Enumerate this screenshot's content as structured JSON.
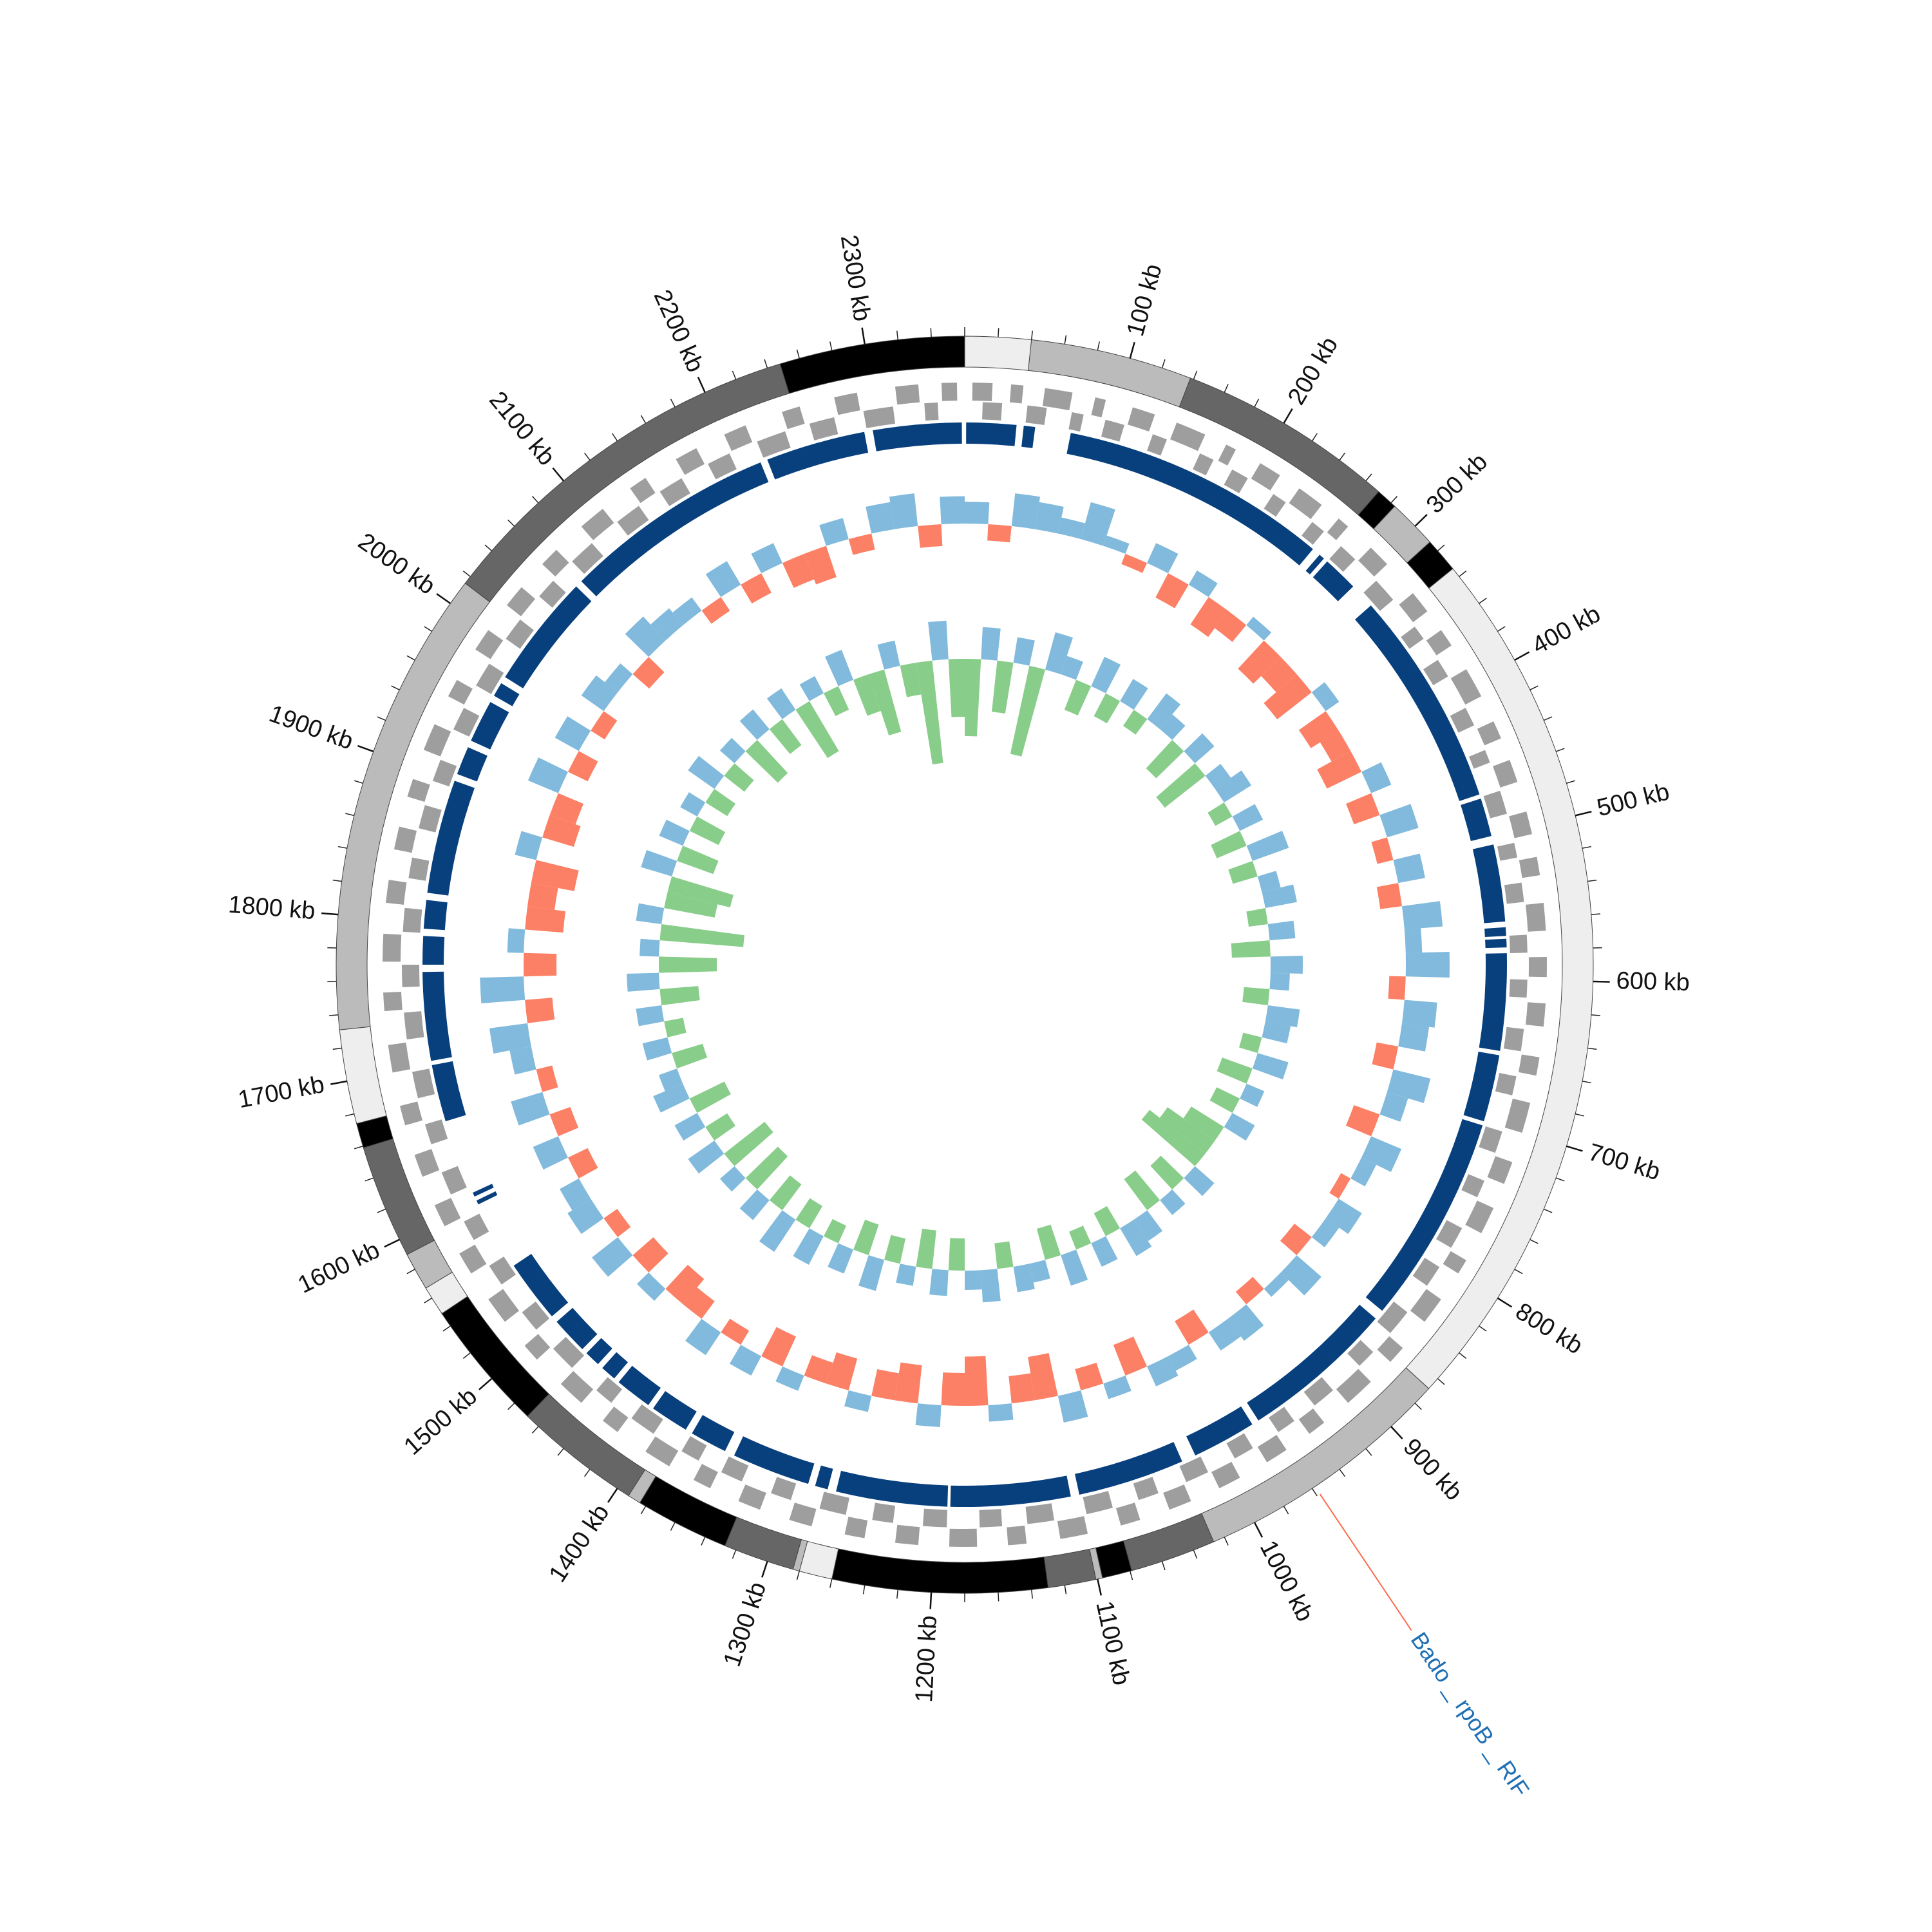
{
  "chart_data": {
    "type": "circos",
    "xlim": [
      0,
      2360
    ],
    "xticks": [
      {
        "value": 100,
        "label": "100 kb"
      },
      {
        "value": 200,
        "label": "200 kb"
      },
      {
        "value": 300,
        "label": "300 kb"
      },
      {
        "value": 400,
        "label": "400 kb"
      },
      {
        "value": 500,
        "label": "500 kb"
      },
      {
        "value": 600,
        "label": "600 kb"
      },
      {
        "value": 700,
        "label": "700 kb"
      },
      {
        "value": 800,
        "label": "800 kb"
      },
      {
        "value": 900,
        "label": "900 kb"
      },
      {
        "value": 1000,
        "label": "1000 kb"
      },
      {
        "value": 1100,
        "label": "1100 kb"
      },
      {
        "value": 1200,
        "label": "1200 kb"
      },
      {
        "value": 1300,
        "label": "1300 kb"
      },
      {
        "value": 1400,
        "label": "1400 kb"
      },
      {
        "value": 1500,
        "label": "1500 kb"
      },
      {
        "value": 1600,
        "label": "1600 kb"
      },
      {
        "value": 1700,
        "label": "1700 kb"
      },
      {
        "value": 1800,
        "label": "1800 kb"
      },
      {
        "value": 1900,
        "label": "1900 kb"
      },
      {
        "value": 2000,
        "label": "2000 kb"
      },
      {
        "value": 2100,
        "label": "2100 kb"
      },
      {
        "value": 2200,
        "label": "2200 kb"
      },
      {
        "value": 2300,
        "label": "2300 kb"
      }
    ],
    "minor_xticks": [
      0,
      20,
      40,
      60,
      80,
      100,
      120,
      140,
      160,
      180,
      200,
      220,
      240,
      260,
      280,
      300,
      320,
      340,
      360,
      380,
      400,
      420,
      440,
      460,
      480,
      500,
      520,
      540,
      560,
      580,
      600,
      620,
      640,
      660,
      680,
      700,
      720,
      740,
      760,
      780,
      800,
      820,
      840,
      860,
      880,
      900,
      920,
      940,
      960,
      980,
      1000,
      1020,
      1040,
      1060,
      1080,
      1100,
      1120,
      1140,
      1160,
      1180,
      1200,
      1220,
      1240,
      1260,
      1280,
      1300,
      1320,
      1340,
      1360,
      1380,
      1400,
      1420,
      1440,
      1460,
      1480,
      1500,
      1520,
      1540,
      1560,
      1580,
      1600,
      1620,
      1640,
      1660,
      1680,
      1700,
      1720,
      1740,
      1760,
      1780,
      1800,
      1820,
      1840,
      1860,
      1880,
      1900,
      1920,
      1940,
      1960,
      1980,
      2000,
      2020,
      2040,
      2060,
      2080,
      2100,
      2120,
      2140,
      2160,
      2180,
      2200,
      2220,
      2240,
      2260,
      2280,
      2300,
      2320,
      2340
    ],
    "contigs": [
      {
        "start": 0,
        "end": 40,
        "color": "#eeeeee"
      },
      {
        "start": 40,
        "end": 138,
        "color": "#bbbbbb"
      },
      {
        "start": 138,
        "end": 270,
        "color": "#666666"
      },
      {
        "start": 270,
        "end": 283,
        "color": "#000000"
      },
      {
        "start": 283,
        "end": 313,
        "color": "#bbbbbb"
      },
      {
        "start": 313,
        "end": 334,
        "color": "#000000"
      },
      {
        "start": 334,
        "end": 868,
        "color": "#eeeeee"
      },
      {
        "start": 868,
        "end": 1027,
        "color": "#bbbbbb"
      },
      {
        "start": 1027,
        "end": 1079,
        "color": "#666666"
      },
      {
        "start": 1079,
        "end": 1097,
        "color": "#000000"
      },
      {
        "start": 1097,
        "end": 1101,
        "color": "#bbbbbb"
      },
      {
        "start": 1101,
        "end": 1130,
        "color": "#666666"
      },
      {
        "start": 1130,
        "end": 1260,
        "color": "#000000"
      },
      {
        "start": 1260,
        "end": 1280,
        "color": "#eeeeee"
      },
      {
        "start": 1280,
        "end": 1284,
        "color": "#bbbbbb"
      },
      {
        "start": 1284,
        "end": 1327,
        "color": "#666666"
      },
      {
        "start": 1327,
        "end": 1384,
        "color": "#000000"
      },
      {
        "start": 1384,
        "end": 1392,
        "color": "#bbbbbb"
      },
      {
        "start": 1392,
        "end": 1469,
        "color": "#666666"
      },
      {
        "start": 1469,
        "end": 1549,
        "color": "#000000"
      },
      {
        "start": 1549,
        "end": 1567,
        "color": "#eeeeee"
      },
      {
        "start": 1567,
        "end": 1590,
        "color": "#bbbbbb"
      },
      {
        "start": 1590,
        "end": 1659,
        "color": "#666666"
      },
      {
        "start": 1659,
        "end": 1674,
        "color": "#000000"
      },
      {
        "start": 1674,
        "end": 1731,
        "color": "#eeeeee"
      },
      {
        "start": 1731,
        "end": 2015,
        "color": "#bbbbbb"
      },
      {
        "start": 2015,
        "end": 2248,
        "color": "#666666"
      },
      {
        "start": 2248,
        "end": 2360,
        "color": "#000000"
      }
    ],
    "genes": {
      "color": "#9e9e9e",
      "forward": [
        [
          5,
          18
        ],
        [
          30,
          38
        ],
        [
          52,
          70
        ],
        [
          85,
          92
        ],
        [
          110,
          125
        ],
        [
          140,
          160
        ],
        [
          175,
          182
        ],
        [
          200,
          215
        ],
        [
          230,
          248
        ],
        [
          262,
          270
        ],
        [
          290,
          305
        ],
        [
          330,
          345
        ],
        [
          360,
          372
        ],
        [
          390,
          410
        ],
        [
          428,
          440
        ],
        [
          455,
          470
        ],
        [
          490,
          505
        ],
        [
          520,
          532
        ],
        [
          550,
          568
        ],
        [
          585,
          598
        ],
        [
          615,
          630
        ],
        [
          650,
          662
        ],
        [
          680,
          700
        ],
        [
          720,
          735
        ],
        [
          752,
          770
        ],
        [
          790,
          800
        ],
        [
          820,
          838
        ],
        [
          860,
          872
        ],
        [
          890,
          910
        ],
        [
          930,
          942
        ],
        [
          960,
          975
        ],
        [
          995,
          1010
        ],
        [
          1030,
          1045
        ],
        [
          1065,
          1078
        ],
        [
          1100,
          1118
        ],
        [
          1140,
          1152
        ],
        [
          1172,
          1190
        ],
        [
          1210,
          1225
        ],
        [
          1245,
          1258
        ],
        [
          1280,
          1295
        ],
        [
          1315,
          1330
        ],
        [
          1350,
          1362
        ],
        [
          1380,
          1398
        ],
        [
          1420,
          1432
        ],
        [
          1450,
          1468
        ],
        [
          1490,
          1502
        ],
        [
          1522,
          1540
        ],
        [
          1560,
          1575
        ],
        [
          1595,
          1610
        ],
        [
          1630,
          1645
        ],
        [
          1665,
          1678
        ],
        [
          1700,
          1718
        ],
        [
          1740,
          1752
        ],
        [
          1772,
          1790
        ],
        [
          1810,
          1825
        ],
        [
          1845,
          1860
        ],
        [
          1880,
          1892
        ],
        [
          1912,
          1930
        ],
        [
          1950,
          1962
        ],
        [
          1985,
          2000
        ],
        [
          2020,
          2035
        ],
        [
          2055,
          2068
        ],
        [
          2090,
          2108
        ],
        [
          2130,
          2142
        ],
        [
          2165,
          2180
        ],
        [
          2200,
          2215
        ],
        [
          2240,
          2252
        ],
        [
          2275,
          2290
        ],
        [
          2315,
          2330
        ],
        [
          2345,
          2355
        ]
      ],
      "reverse": [
        [
          12,
          25
        ],
        [
          42,
          55
        ],
        [
          72,
          80
        ],
        [
          95,
          108
        ],
        [
          128,
          138
        ],
        [
          162,
          172
        ],
        [
          186,
          198
        ],
        [
          218,
          228
        ],
        [
          250,
          260
        ],
        [
          275,
          288
        ],
        [
          308,
          325
        ],
        [
          348,
          358
        ],
        [
          375,
          388
        ],
        [
          412,
          425
        ],
        [
          443,
          452
        ],
        [
          472,
          488
        ],
        [
          508,
          518
        ],
        [
          535,
          548
        ],
        [
          570,
          582
        ],
        [
          600,
          612
        ],
        [
          633,
          648
        ],
        [
          665,
          678
        ],
        [
          703,
          718
        ],
        [
          738,
          750
        ],
        [
          773,
          788
        ],
        [
          803,
          818
        ],
        [
          840,
          858
        ],
        [
          875,
          888
        ],
        [
          912,
          928
        ],
        [
          945,
          958
        ],
        [
          978,
          992
        ],
        [
          1012,
          1028
        ],
        [
          1048,
          1062
        ],
        [
          1080,
          1098
        ],
        [
          1120,
          1138
        ],
        [
          1155,
          1170
        ],
        [
          1192,
          1208
        ],
        [
          1228,
          1242
        ],
        [
          1260,
          1278
        ],
        [
          1298,
          1312
        ],
        [
          1333,
          1348
        ],
        [
          1365,
          1378
        ],
        [
          1400,
          1418
        ],
        [
          1435,
          1448
        ],
        [
          1470,
          1488
        ],
        [
          1505,
          1520
        ],
        [
          1543,
          1558
        ],
        [
          1578,
          1592
        ],
        [
          1612,
          1628
        ],
        [
          1648,
          1662
        ],
        [
          1680,
          1698
        ],
        [
          1720,
          1738
        ],
        [
          1755,
          1770
        ],
        [
          1792,
          1808
        ],
        [
          1828,
          1842
        ],
        [
          1862,
          1878
        ],
        [
          1895,
          1910
        ],
        [
          1932,
          1948
        ],
        [
          1965,
          1982
        ],
        [
          2002,
          2018
        ],
        [
          2038,
          2052
        ],
        [
          2070,
          2088
        ],
        [
          2110,
          2128
        ],
        [
          2145,
          2162
        ],
        [
          2182,
          2198
        ],
        [
          2218,
          2238
        ],
        [
          2255,
          2272
        ],
        [
          2292,
          2312
        ],
        [
          2333,
          2342
        ]
      ]
    },
    "blocks": {
      "color": "#08407e",
      "values": [
        [
          1,
          36
        ],
        [
          41,
          49
        ],
        [
          74,
          262
        ],
        [
          268,
          272
        ],
        [
          275,
          300
        ],
        [
          318,
          470
        ],
        [
          473,
          500
        ],
        [
          506,
          560
        ],
        [
          564,
          570
        ],
        [
          572,
          578
        ],
        [
          582,
          650
        ],
        [
          653,
          700
        ],
        [
          703,
          850
        ],
        [
          857,
          965
        ],
        [
          970,
          1015
        ],
        [
          1025,
          1100
        ],
        [
          1106,
          1190
        ],
        [
          1192,
          1270
        ],
        [
          1276,
          1285
        ],
        [
          1290,
          1345
        ],
        [
          1352,
          1378
        ],
        [
          1383,
          1410
        ],
        [
          1414,
          1440
        ],
        [
          1444,
          1455
        ],
        [
          1459,
          1470
        ],
        [
          1474,
          1500
        ],
        [
          1505,
          1549
        ],
        [
          1598,
          1601
        ],
        [
          1604,
          1607
        ],
        [
          1660,
          1700
        ],
        [
          1703,
          1765
        ],
        [
          1770,
          1790
        ],
        [
          1795,
          1815
        ],
        [
          1820,
          1900
        ],
        [
          1905,
          1925
        ],
        [
          1930,
          1960
        ],
        [
          1965,
          1975
        ],
        [
          1980,
          2060
        ],
        [
          2065,
          2215
        ],
        [
          2220,
          2290
        ],
        [
          2296,
          2358
        ]
      ]
    },
    "x": [
      0,
      20,
      40,
      60,
      80,
      100,
      120,
      140,
      160,
      180,
      200,
      220,
      240,
      260,
      280,
      300,
      320,
      340,
      360,
      380,
      400,
      420,
      440,
      460,
      480,
      500,
      520,
      540,
      560,
      580,
      600,
      620,
      640,
      660,
      680,
      700,
      720,
      740,
      760,
      780,
      800,
      820,
      840,
      860,
      880,
      900,
      920,
      940,
      960,
      980,
      1000,
      1020,
      1040,
      1060,
      1080,
      1100,
      1120,
      1140,
      1160,
      1180,
      1200,
      1220,
      1240,
      1260,
      1280,
      1300,
      1320,
      1340,
      1360,
      1380,
      1400,
      1420,
      1440,
      1460,
      1480,
      1500,
      1520,
      1540,
      1560,
      1580,
      1600,
      1620,
      1640,
      1660,
      1680,
      1700,
      1720,
      1740,
      1760,
      1780,
      1800,
      1820,
      1840,
      1860,
      1880,
      1900,
      1920,
      1940,
      1960,
      1980,
      2000,
      2020,
      2040,
      2060,
      2080,
      2100,
      2120,
      2140,
      2160,
      2180,
      2200,
      2220,
      2240,
      2260,
      2280,
      2300,
      2320,
      2340
    ],
    "gc": {
      "ylim": [
        -1,
        1
      ],
      "colors": [
        "#6baed6",
        "#fb6a4a"
      ],
      "values": [
        0.4,
        -0.3,
        0.6,
        0.5,
        0.3,
        0.7,
        0.2,
        -0.2,
        0.4,
        -0.5,
        0.3,
        -0.6,
        -0.4,
        0.2,
        -0.7,
        -0.5,
        -0.8,
        0.3,
        -0.6,
        -0.4,
        -0.7,
        0.4,
        -0.5,
        0.6,
        -0.3,
        0.5,
        -0.4,
        0.7,
        0.3,
        0.8,
        -0.3,
        0.6,
        0.5,
        -0.4,
        0.7,
        0.4,
        -0.5,
        0.6,
        0.3,
        -0.2,
        0.5,
        0.3,
        -0.4,
        0.6,
        0.2,
        -0.3,
        0.5,
        0.4,
        -0.5,
        0.3,
        0.4,
        -0.6,
        0.3,
        -0.4,
        0.5,
        -0.8,
        -0.5,
        0.3,
        -0.9,
        -0.6,
        0.4,
        -0.7,
        -0.5,
        0.3,
        -0.6,
        -0.4,
        0.3,
        -0.6,
        0.4,
        -0.3,
        0.5,
        -0.4,
        -0.6,
        0.3,
        -0.5,
        0.6,
        -0.3,
        0.5,
        0.4,
        -0.4,
        0.5,
        -0.4,
        0.6,
        -0.3,
        0.4,
        0.7,
        -0.5,
        0.8,
        -0.6,
        0.3,
        -0.7,
        -0.5,
        -0.8,
        0.4,
        -0.6,
        -0.5,
        0.6,
        -0.4,
        0.5,
        -0.3,
        0.5,
        0.3,
        -0.4,
        0.6,
        0.4,
        0.3,
        -0.3,
        0.5,
        -0.4,
        0.4,
        -0.5,
        -0.6,
        0.4,
        -0.3,
        0.5,
        0.6,
        -0.4,
        0.5
      ]
    },
    "skew": {
      "ylim": [
        -2,
        1
      ],
      "colors": [
        "#6baed6",
        "#74c476"
      ],
      "values": [
        -1.2,
        0.5,
        -0.8,
        0.4,
        -1.4,
        0.6,
        0.3,
        -0.5,
        0.5,
        -0.4,
        0.4,
        -0.3,
        0.5,
        0.3,
        -0.6,
        0.4,
        -0.8,
        0.3,
        0.5,
        -0.3,
        0.4,
        -0.5,
        0.6,
        -0.4,
        0.3,
        0.5,
        -0.3,
        0.4,
        -0.6,
        0.5,
        0.3,
        -0.4,
        0.5,
        0.4,
        -0.3,
        0.5,
        -0.5,
        0.3,
        -0.4,
        0.4,
        -0.6,
        -0.9,
        -1.1,
        0.4,
        -0.5,
        0.3,
        -0.6,
        0.4,
        0.5,
        -0.4,
        0.4,
        -0.3,
        0.5,
        -0.5,
        0.3,
        0.4,
        -0.4,
        0.5,
        0.3,
        -0.5,
        0.4,
        -0.6,
        0.3,
        -0.4,
        0.5,
        -0.5,
        0.4,
        -0.3,
        0.5,
        -0.4,
        0.6,
        -0.5,
        0.4,
        -0.7,
        0.3,
        -0.8,
        0.5,
        -0.4,
        0.4,
        -0.6,
        0.5,
        0.3,
        -0.5,
        0.4,
        -0.3,
        0.4,
        -0.6,
        0.5,
        -0.9,
        0.3,
        -1.3,
        0.4,
        -0.8,
        -1.0,
        0.5,
        -0.6,
        0.4,
        -0.5,
        0.3,
        -0.4,
        0.5,
        -0.4,
        0.3,
        -0.7,
        0.4,
        -0.5,
        0.4,
        -0.9,
        0.3,
        -0.4,
        0.5,
        -0.6,
        -1.0,
        0.4,
        -0.5,
        -1.6,
        0.6,
        -0.9
      ]
    },
    "annotations": [
      {
        "text": "Bado _ rpoB _ RIF",
        "x": 958,
        "color": "#1f6fb4",
        "line_color": "#fb6a4a"
      }
    ]
  }
}
